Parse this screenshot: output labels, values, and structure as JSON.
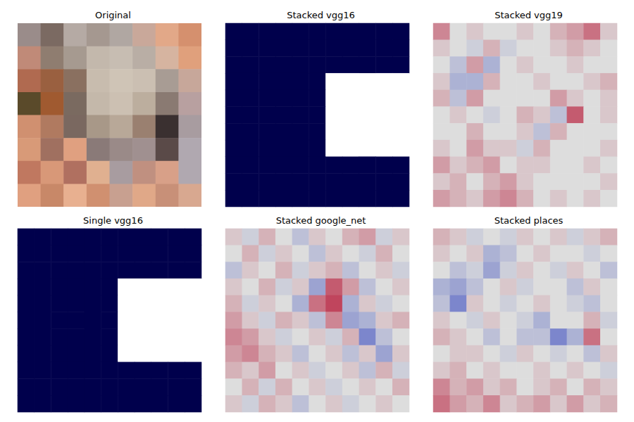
{
  "chart_data": [
    {
      "type": "image",
      "title": "Original",
      "tick_labels": false,
      "colors": [
        [
          "#9a8c8a",
          "#7b6a62",
          "#b5aaa4",
          "#a59890",
          "#b0a7a2",
          "#c9a89a",
          "#e2a888",
          "#d5906e"
        ],
        [
          "#c08a78",
          "#8f7d70",
          "#a69a90",
          "#c3b8ac",
          "#c7bdb2",
          "#b9aea5",
          "#d6b4a0",
          "#e0a07c"
        ],
        [
          "#b06a50",
          "#9a6040",
          "#8a7060",
          "#c8bcae",
          "#cfc4b6",
          "#cbbfb2",
          "#a89c94",
          "#c7a79a"
        ],
        [
          "#5a4a2a",
          "#a05a30",
          "#7a6a60",
          "#c4b8aa",
          "#ccc0b2",
          "#bcae9e",
          "#8a7a72",
          "#b8a0a0"
        ],
        [
          "#d09070",
          "#b07a60",
          "#7a6860",
          "#a89888",
          "#b8a898",
          "#9a8070",
          "#3a3030",
          "#a89ca0"
        ],
        [
          "#d89a78",
          "#a07060",
          "#e0a080",
          "#8a7a78",
          "#9a8a88",
          "#a09090",
          "#5a4a48",
          "#b0a8b0"
        ],
        [
          "#c07860",
          "#d89878",
          "#b07060",
          "#e0b090",
          "#a89ca0",
          "#c09080",
          "#d8a088",
          "#b0a8b0"
        ],
        [
          "#e0a080",
          "#c88868",
          "#e8b090",
          "#d09070",
          "#c8a090",
          "#e0a888",
          "#c89078",
          "#d8a890"
        ]
      ]
    },
    {
      "type": "heatmap",
      "title": "Stacked vgg16",
      "tick_labels": false,
      "color_range": [
        0,
        1
      ],
      "colors": [
        "#00004c",
        "#ffffff"
      ],
      "cells": [
        [
          0,
          0,
          0,
          0,
          0,
          0,
          0,
          0,
          0,
          0,
          0
        ],
        [
          0,
          0,
          0,
          0,
          0,
          0,
          0,
          0,
          0,
          0,
          0
        ],
        [
          0,
          0,
          0,
          0,
          0,
          0,
          0,
          0,
          0,
          0,
          0
        ],
        [
          0,
          0,
          0,
          0,
          0,
          0,
          1,
          1,
          1,
          1,
          1
        ],
        [
          0,
          0,
          0,
          0,
          0,
          0,
          1,
          1,
          1,
          1,
          1
        ],
        [
          0,
          0,
          0,
          0,
          0,
          0,
          1,
          1,
          1,
          1,
          1
        ],
        [
          0,
          0,
          0,
          0,
          0,
          0,
          1,
          1,
          1,
          1,
          1
        ],
        [
          0,
          0,
          0,
          0,
          0,
          0,
          1,
          1,
          1,
          1,
          1
        ],
        [
          0,
          0,
          0,
          0,
          0,
          0,
          0,
          0,
          0,
          0,
          0
        ],
        [
          0,
          0,
          0,
          0,
          0,
          0,
          0,
          0,
          0,
          0,
          0
        ],
        [
          0,
          0,
          0,
          0,
          0,
          0,
          0,
          0,
          0,
          0,
          0
        ]
      ]
    },
    {
      "type": "heatmap",
      "title": "Stacked vgg19",
      "tick_labels": false,
      "color_range": [
        -1,
        1
      ],
      "colors": [
        "#3b4cc0",
        "#dddddd",
        "#b40426"
      ],
      "cells": [
        [
          0.4,
          0,
          0.1,
          0,
          0,
          0.1,
          0,
          0.2,
          0.3,
          0.5,
          0.1
        ],
        [
          0.1,
          0,
          -0.1,
          0.2,
          -0.1,
          0,
          0,
          0.1,
          0.2,
          0.1,
          0
        ],
        [
          0,
          -0.2,
          0.3,
          -0.3,
          0,
          0.1,
          0,
          0,
          0.1,
          0,
          0
        ],
        [
          0.1,
          -0.3,
          -0.3,
          0.2,
          0,
          0,
          0.1,
          0,
          0,
          0.1,
          0.2
        ],
        [
          0.2,
          -0.2,
          0.3,
          0,
          0,
          0,
          0,
          0.3,
          0.1,
          0,
          0.1
        ],
        [
          0,
          0.1,
          0,
          -0.1,
          0,
          0.2,
          0.1,
          -0.2,
          0.6,
          0,
          0.1
        ],
        [
          0,
          0,
          0.2,
          0,
          0,
          0.1,
          -0.2,
          0.2,
          0,
          0,
          0
        ],
        [
          0.1,
          0,
          0.3,
          0.1,
          0.1,
          -0.1,
          0.2,
          0,
          0,
          0,
          0.1
        ],
        [
          0.3,
          0.1,
          0.2,
          0.3,
          0,
          0.1,
          0.1,
          0,
          0,
          0.1,
          0
        ],
        [
          0.1,
          0.2,
          0,
          0.2,
          0.3,
          0.1,
          0,
          0,
          0,
          0,
          0.1
        ],
        [
          0.3,
          0.2,
          0.1,
          0.3,
          0.4,
          0.2,
          0,
          0.1,
          0,
          0.1,
          0
        ]
      ]
    },
    {
      "type": "heatmap",
      "title": "Single vgg16",
      "tick_labels": false,
      "color_range": [
        0,
        1
      ],
      "colors": [
        "#00004c",
        "#ffffff"
      ],
      "cells": [
        [
          0,
          0,
          0,
          0,
          0,
          0,
          0,
          0,
          0,
          0,
          0
        ],
        [
          0,
          0,
          0,
          0,
          0,
          0,
          0,
          0,
          0,
          0,
          0
        ],
        [
          0,
          0,
          0,
          0,
          0,
          0,
          0,
          0,
          0,
          0,
          0
        ],
        [
          0,
          0,
          0,
          0,
          0,
          0,
          1,
          1,
          1,
          1,
          1
        ],
        [
          0,
          0,
          0,
          0,
          0,
          0,
          1,
          1,
          1,
          1,
          1
        ],
        [
          0,
          0,
          0,
          0,
          0,
          0,
          1,
          1,
          1,
          1,
          1
        ],
        [
          0,
          0,
          0,
          0,
          0,
          0,
          1,
          1,
          1,
          1,
          1
        ],
        [
          0,
          0,
          0,
          0,
          0,
          0,
          1,
          1,
          1,
          1,
          1
        ],
        [
          0,
          0,
          0,
          0,
          0,
          0,
          0,
          0,
          0,
          0,
          0
        ],
        [
          0,
          0,
          0,
          0,
          0,
          0,
          0,
          0,
          0,
          0,
          0
        ],
        [
          0,
          0,
          0,
          0,
          0,
          0,
          0,
          0,
          0,
          0,
          0
        ]
      ]
    },
    {
      "type": "heatmap",
      "title": "Stacked google_net",
      "tick_labels": false,
      "color_range": [
        -1,
        1
      ],
      "colors": [
        "#3b4cc0",
        "#dddddd",
        "#b40426"
      ],
      "cells": [
        [
          0.1,
          -0.1,
          0.2,
          0,
          -0.2,
          0.1,
          0,
          0.2,
          0.3,
          -0.1,
          0.1
        ],
        [
          0,
          0.2,
          -0.1,
          0.1,
          0,
          -0.2,
          0.1,
          0,
          -0.1,
          0.2,
          0
        ],
        [
          -0.2,
          0.1,
          0,
          0.2,
          -0.1,
          0.1,
          0.2,
          -0.2,
          0,
          0.1,
          -0.1
        ],
        [
          0.1,
          0,
          0.2,
          -0.1,
          0.1,
          -0.4,
          0.6,
          0.3,
          -0.2,
          0,
          0.1
        ],
        [
          0.2,
          -0.1,
          0.1,
          0,
          -0.3,
          0.5,
          0.7,
          -0.3,
          0.1,
          -0.1,
          0
        ],
        [
          0.3,
          0.1,
          -0.1,
          0.2,
          0.1,
          -0.2,
          0.4,
          -0.4,
          -0.3,
          0.1,
          0.2
        ],
        [
          0.4,
          0.3,
          0.1,
          -0.1,
          0,
          0.1,
          -0.1,
          0.2,
          -0.6,
          -0.2,
          0
        ],
        [
          0.3,
          0.4,
          0.2,
          0.1,
          -0.2,
          0,
          0.1,
          -0.2,
          0.1,
          -0.4,
          0.1
        ],
        [
          0.2,
          0.1,
          0.3,
          0,
          0.1,
          -0.1,
          0,
          0.1,
          -0.2,
          0.2,
          -0.1
        ],
        [
          0,
          0.2,
          -0.1,
          0.2,
          0,
          0.1,
          -0.1,
          0,
          0.1,
          0,
          0.2
        ],
        [
          0.1,
          -0.1,
          0.2,
          0.1,
          -0.2,
          0,
          0.1,
          -0.1,
          0,
          0.1,
          0
        ]
      ]
    },
    {
      "type": "heatmap",
      "title": "Stacked places",
      "tick_labels": false,
      "color_range": [
        -1,
        1
      ],
      "colors": [
        "#3b4cc0",
        "#dddddd",
        "#b40426"
      ],
      "cells": [
        [
          0.2,
          0.1,
          -0.1,
          0,
          -0.1,
          0.1,
          0,
          0.1,
          -0.1,
          0.1,
          0.2
        ],
        [
          0.1,
          0,
          0.1,
          -0.3,
          -0.2,
          0,
          0.1,
          0,
          0,
          -0.1,
          0
        ],
        [
          0,
          -0.2,
          -0.1,
          -0.4,
          -0.1,
          0.1,
          0,
          -0.1,
          0.1,
          0,
          -0.2
        ],
        [
          -0.3,
          -0.4,
          -0.2,
          0,
          0.1,
          -0.1,
          0,
          0,
          -0.2,
          0.1,
          0
        ],
        [
          -0.2,
          -0.6,
          0.1,
          0,
          -0.1,
          0,
          0.1,
          0,
          -0.1,
          -0.2,
          0
        ],
        [
          0.1,
          0,
          -0.1,
          0.1,
          0,
          -0.1,
          -0.3,
          0,
          0,
          0.2,
          -0.1
        ],
        [
          0.2,
          0.1,
          0,
          -0.2,
          0,
          -0.2,
          -0.2,
          -0.6,
          -0.3,
          0.5,
          0
        ],
        [
          0,
          0.1,
          0.1,
          0,
          -0.1,
          0.1,
          0,
          -0.1,
          0,
          -0.2,
          0.1
        ],
        [
          0.1,
          0.2,
          0,
          0.1,
          0,
          0,
          0.1,
          0,
          0.1,
          0,
          -0.1
        ],
        [
          0.4,
          0.2,
          0.3,
          0.1,
          0.2,
          0,
          0.1,
          0.2,
          0,
          0.2,
          0.1
        ],
        [
          0.5,
          0.3,
          0.2,
          0.4,
          0.1,
          0.2,
          0.3,
          0.1,
          0.3,
          0.1,
          0.2
        ]
      ]
    }
  ]
}
